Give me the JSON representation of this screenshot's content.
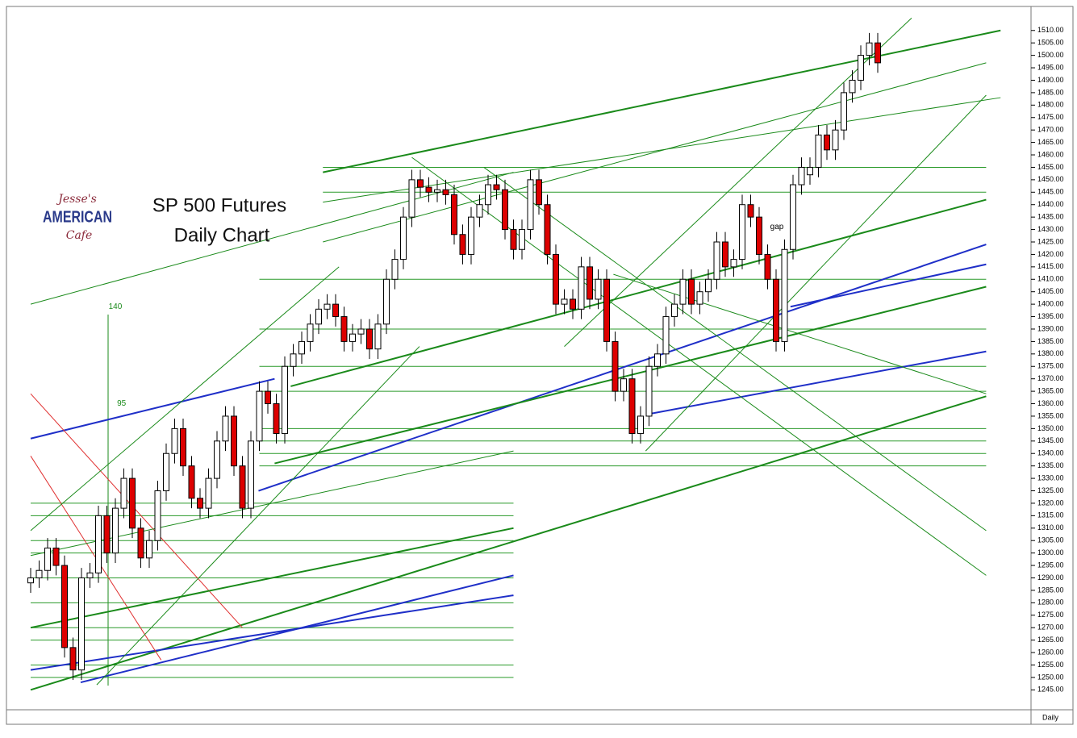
{
  "chart_data": {
    "type": "candlestick",
    "title": "SP 500 Futures",
    "subtitle": "Daily Chart",
    "logo": {
      "line1": "Jesse's",
      "line2": "AMERICAN",
      "line3": "Cafe"
    },
    "annotations": [
      {
        "text": "140",
        "x": 9.2,
        "y": 1399
      },
      {
        "text": "95",
        "x": 10.2,
        "y": 1360
      },
      {
        "text": "gap",
        "x": 87.3,
        "y": 1431
      }
    ],
    "period": "Daily",
    "up_color": "#ffffff",
    "down_color": "#dd0000",
    "ylim": [
      1237,
      1519
    ],
    "yticks": [
      {
        "value": 1245,
        "label": "1245.00"
      },
      {
        "value": 1250,
        "label": "1250.00"
      },
      {
        "value": 1255,
        "label": "1255.00"
      },
      {
        "value": 1260,
        "label": "1260.00"
      },
      {
        "value": 1265,
        "label": "1265.00"
      },
      {
        "value": 1270,
        "label": "1270.00"
      },
      {
        "value": 1275,
        "label": "1275.00"
      },
      {
        "value": 1280,
        "label": "1280.00"
      },
      {
        "value": 1285,
        "label": "1285.00"
      },
      {
        "value": 1290,
        "label": "1290.00"
      },
      {
        "value": 1295,
        "label": "1295.00"
      },
      {
        "value": 1300,
        "label": "1300.00"
      },
      {
        "value": 1305,
        "label": "1305.00"
      },
      {
        "value": 1310,
        "label": "1310.00"
      },
      {
        "value": 1315,
        "label": "1315.00"
      },
      {
        "value": 1320,
        "label": "1320.00"
      },
      {
        "value": 1325,
        "label": "1325.00"
      },
      {
        "value": 1330,
        "label": "1330.00"
      },
      {
        "value": 1335,
        "label": "1335.00"
      },
      {
        "value": 1340,
        "label": "1340.00"
      },
      {
        "value": 1345,
        "label": "1345.00"
      },
      {
        "value": 1350,
        "label": "1350.00"
      },
      {
        "value": 1355,
        "label": "1355.00"
      },
      {
        "value": 1360,
        "label": "1360.00"
      },
      {
        "value": 1365,
        "label": "1365.00"
      },
      {
        "value": 1370,
        "label": "1370.00"
      },
      {
        "value": 1375,
        "label": "1375.00"
      },
      {
        "value": 1380,
        "label": "1380.00"
      },
      {
        "value": 1385,
        "label": "1385.00"
      },
      {
        "value": 1390,
        "label": "1390.00"
      },
      {
        "value": 1395,
        "label": "1395.00"
      },
      {
        "value": 1400,
        "label": "1400.00"
      },
      {
        "value": 1405,
        "label": "1405.00"
      },
      {
        "value": 1410,
        "label": "1410.00"
      },
      {
        "value": 1415,
        "label": "1415.00"
      },
      {
        "value": 1420,
        "label": "1420.00"
      },
      {
        "value": 1425,
        "label": "1425.00"
      },
      {
        "value": 1430,
        "label": "1430.00"
      },
      {
        "value": 1435,
        "label": "1435.00"
      },
      {
        "value": 1440,
        "label": "1440.00"
      },
      {
        "value": 1445,
        "label": "1445.00"
      },
      {
        "value": 1450,
        "label": "1450.00"
      },
      {
        "value": 1455,
        "label": "1455.00"
      },
      {
        "value": 1460,
        "label": "1460.00"
      },
      {
        "value": 1465,
        "label": "1465.00"
      },
      {
        "value": 1470,
        "label": "1470.00"
      },
      {
        "value": 1475,
        "label": "1475.00"
      },
      {
        "value": 1480,
        "label": "1480.00"
      },
      {
        "value": 1485,
        "label": "1485.00"
      },
      {
        "value": 1490,
        "label": "1490.00"
      },
      {
        "value": 1495,
        "label": "1495.00"
      },
      {
        "value": 1500,
        "label": "1500.00"
      },
      {
        "value": 1505,
        "label": "1505.00"
      },
      {
        "value": 1510,
        "label": "1510.00"
      }
    ],
    "open": [
      1288,
      1290,
      1293,
      1302,
      1295,
      1262,
      1253,
      1290,
      1292,
      1315,
      1300,
      1318,
      1330,
      1310,
      1298,
      1305,
      1325,
      1340,
      1350,
      1335,
      1322,
      1318,
      1330,
      1345,
      1355,
      1335,
      1318,
      1345,
      1365,
      1360,
      1348,
      1375,
      1380,
      1385,
      1392,
      1398,
      1400,
      1395,
      1385,
      1388,
      1390,
      1382,
      1392,
      1410,
      1418,
      1435,
      1450,
      1447,
      1445,
      1446,
      1444,
      1428,
      1420,
      1435,
      1440,
      1448,
      1446,
      1430,
      1422,
      1430,
      1450,
      1440,
      1420,
      1400,
      1402,
      1398,
      1415,
      1402,
      1410,
      1385,
      1365,
      1370,
      1348,
      1355,
      1375,
      1380,
      1395,
      1400,
      1410,
      1400,
      1405,
      1410,
      1425,
      1415,
      1418,
      1440,
      1435,
      1420,
      1410,
      1385,
      1422,
      1448,
      1452,
      1455,
      1468,
      1462,
      1470,
      1485,
      1490,
      1500,
      1505
    ],
    "high": [
      1294,
      1297,
      1306,
      1306,
      1299,
      1266,
      1294,
      1296,
      1319,
      1319,
      1322,
      1334,
      1334,
      1314,
      1309,
      1329,
      1344,
      1354,
      1354,
      1339,
      1326,
      1334,
      1349,
      1359,
      1359,
      1339,
      1349,
      1369,
      1369,
      1364,
      1379,
      1384,
      1389,
      1396,
      1402,
      1404,
      1404,
      1399,
      1392,
      1394,
      1394,
      1396,
      1414,
      1422,
      1439,
      1454,
      1454,
      1451,
      1450,
      1450,
      1448,
      1432,
      1439,
      1444,
      1452,
      1452,
      1450,
      1434,
      1434,
      1454,
      1454,
      1444,
      1424,
      1406,
      1406,
      1419,
      1419,
      1414,
      1414,
      1389,
      1374,
      1374,
      1359,
      1379,
      1384,
      1399,
      1404,
      1414,
      1414,
      1409,
      1414,
      1429,
      1429,
      1422,
      1444,
      1444,
      1439,
      1424,
      1414,
      1426,
      1452,
      1459,
      1459,
      1472,
      1472,
      1474,
      1489,
      1494,
      1504,
      1509,
      1509
    ],
    "low": [
      1284,
      1286,
      1289,
      1291,
      1258,
      1249,
      1249,
      1286,
      1288,
      1296,
      1296,
      1314,
      1306,
      1294,
      1294,
      1301,
      1321,
      1336,
      1331,
      1318,
      1314,
      1314,
      1326,
      1341,
      1331,
      1314,
      1314,
      1341,
      1356,
      1344,
      1344,
      1371,
      1376,
      1381,
      1388,
      1394,
      1391,
      1381,
      1381,
      1384,
      1378,
      1378,
      1388,
      1406,
      1414,
      1431,
      1443,
      1441,
      1441,
      1440,
      1424,
      1416,
      1416,
      1431,
      1436,
      1442,
      1426,
      1418,
      1418,
      1426,
      1436,
      1416,
      1396,
      1396,
      1394,
      1394,
      1398,
      1398,
      1381,
      1361,
      1361,
      1344,
      1344,
      1351,
      1371,
      1376,
      1391,
      1396,
      1396,
      1396,
      1401,
      1406,
      1411,
      1411,
      1414,
      1431,
      1416,
      1406,
      1381,
      1381,
      1418,
      1444,
      1448,
      1451,
      1458,
      1458,
      1466,
      1481,
      1486,
      1496,
      1493
    ],
    "close": [
      1290,
      1293,
      1302,
      1295,
      1262,
      1253,
      1290,
      1292,
      1315,
      1300,
      1318,
      1330,
      1310,
      1298,
      1305,
      1325,
      1340,
      1350,
      1335,
      1322,
      1318,
      1330,
      1345,
      1355,
      1335,
      1318,
      1345,
      1365,
      1360,
      1348,
      1375,
      1380,
      1385,
      1392,
      1398,
      1400,
      1395,
      1385,
      1388,
      1390,
      1382,
      1392,
      1410,
      1418,
      1435,
      1450,
      1447,
      1445,
      1446,
      1444,
      1428,
      1420,
      1435,
      1440,
      1448,
      1446,
      1430,
      1422,
      1430,
      1450,
      1440,
      1420,
      1400,
      1402,
      1398,
      1415,
      1402,
      1410,
      1385,
      1365,
      1370,
      1348,
      1355,
      1375,
      1380,
      1395,
      1400,
      1410,
      1400,
      1405,
      1410,
      1425,
      1415,
      1418,
      1440,
      1435,
      1420,
      1410,
      1385,
      1422,
      1448,
      1455,
      1455,
      1468,
      1462,
      1470,
      1485,
      1490,
      1500,
      1505,
      1497
    ],
    "trendlines": [
      {
        "from": [
          34.5,
          1453
        ],
        "to": [
          114.5,
          1510
        ],
        "color": "#1a8a1a",
        "width": 2
      },
      {
        "from": [
          34.5,
          1441
        ],
        "to": [
          114.5,
          1483
        ],
        "color": "#1a8a1a",
        "width": 1
      },
      {
        "from": [
          0,
          1400
        ],
        "to": [
          57,
          1453
        ],
        "color": "#1a8a1a",
        "width": 1
      },
      {
        "from": [
          0,
          1245
        ],
        "to": [
          112.8,
          1363
        ],
        "color": "#1a8a1a",
        "width": 2
      },
      {
        "from": [
          5.9,
          1248
        ],
        "to": [
          57,
          1291
        ],
        "color": "#1f2fc8",
        "width": 2
      },
      {
        "from": [
          0,
          1253
        ],
        "to": [
          57,
          1283
        ],
        "color": "#1f2fc8",
        "width": 2
      },
      {
        "from": [
          26.9,
          1325
        ],
        "to": [
          112.8,
          1424
        ],
        "color": "#1f2fc8",
        "width": 2
      },
      {
        "from": [
          73.2,
          1356
        ],
        "to": [
          112.8,
          1381
        ],
        "color": "#1f2fc8",
        "width": 2
      },
      {
        "from": [
          89.7,
          1399
        ],
        "to": [
          112.8,
          1416
        ],
        "color": "#1f2fc8",
        "width": 2
      },
      {
        "from": [
          0,
          1346
        ],
        "to": [
          28.8,
          1370
        ],
        "color": "#1f2fc8",
        "width": 2
      },
      {
        "from": [
          0,
          1364
        ],
        "to": [
          25,
          1270
        ],
        "color": "#e03030",
        "width": 1
      },
      {
        "from": [
          0,
          1339
        ],
        "to": [
          15.4,
          1257
        ],
        "color": "#e03030",
        "width": 1
      },
      {
        "from": [
          45,
          1459
        ],
        "to": [
          112.8,
          1291
        ],
        "color": "#1a8a1a",
        "width": 1
      },
      {
        "from": [
          53.5,
          1455
        ],
        "to": [
          112.8,
          1309
        ],
        "color": "#1a8a1a",
        "width": 1
      },
      {
        "from": [
          68.8,
          1412
        ],
        "to": [
          112.8,
          1364
        ],
        "color": "#1a8a1a",
        "width": 1
      },
      {
        "from": [
          0,
          1270
        ],
        "to": [
          57,
          1310
        ],
        "color": "#1a8a1a",
        "width": 2
      },
      {
        "from": [
          0,
          1299
        ],
        "to": [
          57,
          1341
        ],
        "color": "#1a8a1a",
        "width": 1
      },
      {
        "from": [
          28.8,
          1336
        ],
        "to": [
          112.8,
          1407
        ],
        "color": "#1a8a1a",
        "width": 2
      },
      {
        "from": [
          30.7,
          1367
        ],
        "to": [
          112.8,
          1442
        ],
        "color": "#1a8a1a",
        "width": 2
      },
      {
        "from": [
          34.5,
          1425
        ],
        "to": [
          112.8,
          1497
        ],
        "color": "#1a8a1a",
        "width": 1
      },
      {
        "from": [
          63,
          1383
        ],
        "to": [
          104,
          1515
        ],
        "color": "#1a8a1a",
        "width": 1
      },
      {
        "from": [
          72.6,
          1341
        ],
        "to": [
          112.8,
          1484
        ],
        "color": "#1a8a1a",
        "width": 1
      },
      {
        "from": [
          0,
          1309
        ],
        "to": [
          36.4,
          1415
        ],
        "color": "#1a8a1a",
        "width": 1
      },
      {
        "from": [
          7.8,
          1247
        ],
        "to": [
          45.9,
          1383
        ],
        "color": "#1a8a1a",
        "width": 1
      }
    ],
    "levels": [
      {
        "y": 1250,
        "x": [
          0,
          57
        ]
      },
      {
        "y": 1255,
        "x": [
          0,
          57
        ]
      },
      {
        "y": 1265,
        "x": [
          0,
          57
        ]
      },
      {
        "y": 1270,
        "x": [
          0,
          57
        ]
      },
      {
        "y": 1280,
        "x": [
          0,
          57
        ]
      },
      {
        "y": 1290,
        "x": [
          0,
          57
        ]
      },
      {
        "y": 1300,
        "x": [
          0,
          57
        ]
      },
      {
        "y": 1305,
        "x": [
          0,
          57
        ]
      },
      {
        "y": 1315,
        "x": [
          0,
          57
        ]
      },
      {
        "y": 1320,
        "x": [
          0,
          57
        ]
      },
      {
        "y": 1335,
        "x": [
          27,
          112.8
        ]
      },
      {
        "y": 1340,
        "x": [
          27,
          112.8
        ]
      },
      {
        "y": 1345,
        "x": [
          27,
          112.8
        ]
      },
      {
        "y": 1350,
        "x": [
          27,
          112.8
        ]
      },
      {
        "y": 1365,
        "x": [
          27,
          112.8
        ]
      },
      {
        "y": 1375,
        "x": [
          27,
          112.8
        ]
      },
      {
        "y": 1390,
        "x": [
          27,
          112.8
        ]
      },
      {
        "y": 1410,
        "x": [
          27,
          112.8
        ]
      },
      {
        "y": 1445,
        "x": [
          34.5,
          112.8
        ]
      },
      {
        "y": 1455,
        "x": [
          34.5,
          112.8
        ]
      }
    ]
  }
}
